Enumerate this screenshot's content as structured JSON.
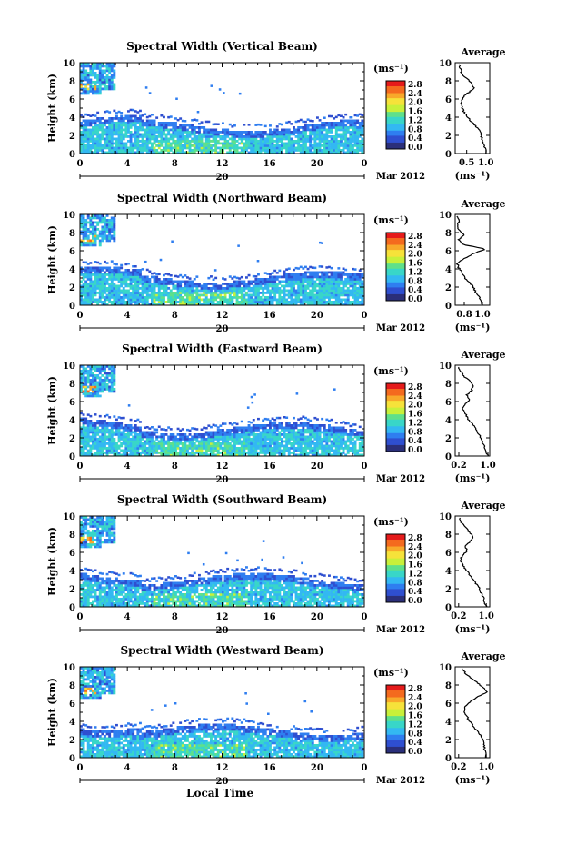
{
  "colors": [
    "#2b2f7a",
    "#2f4fd0",
    "#2f7ef0",
    "#33b8f2",
    "#39d6c8",
    "#5fe08a",
    "#c8f03a",
    "#f6e23a",
    "#f8a92a",
    "#f46a1e",
    "#e51b1b"
  ],
  "panels": [
    {
      "title": "Spectral Width (Vertical Beam)",
      "avg_ticks": [
        "0.5",
        "1.0"
      ],
      "avg_xlim": [
        0.2,
        1.1
      ],
      "profile": [
        1.0,
        0.98,
        0.95,
        0.9,
        0.88,
        0.82,
        0.72,
        0.6,
        0.5,
        0.42,
        0.38,
        0.36,
        0.4,
        0.55,
        0.7,
        0.62,
        0.5,
        0.38,
        0.33,
        0.3
      ]
    },
    {
      "title": "Spectral Width (Northward Beam)",
      "avg_ticks": [
        "0.8",
        "1.0"
      ],
      "avg_xlim": [
        0.7,
        1.08
      ],
      "profile": [
        1.0,
        0.98,
        0.96,
        0.92,
        0.9,
        0.85,
        0.8,
        0.78,
        0.74,
        0.72,
        0.8,
        0.9,
        1.04,
        0.78,
        0.74,
        0.8,
        0.75,
        0.72,
        0.74,
        0.72
      ]
    },
    {
      "title": "Spectral Width (Eastward Beam)",
      "avg_ticks": [
        "0.2",
        "1.0"
      ],
      "avg_xlim": [
        0.1,
        1.05
      ],
      "profile": [
        1.0,
        0.95,
        0.9,
        0.85,
        0.8,
        0.72,
        0.65,
        0.55,
        0.45,
        0.38,
        0.3,
        0.35,
        0.5,
        0.42,
        0.55,
        0.6,
        0.5,
        0.35,
        0.25,
        0.2
      ]
    },
    {
      "title": "Spectral Width (Southward Beam)",
      "avg_ticks": [
        "0.2",
        "1.0"
      ],
      "avg_xlim": [
        0.1,
        1.1
      ],
      "profile": [
        1.0,
        0.95,
        0.92,
        0.85,
        0.8,
        0.7,
        0.6,
        0.5,
        0.4,
        0.32,
        0.25,
        0.3,
        0.45,
        0.4,
        0.55,
        0.62,
        0.5,
        0.4,
        0.28,
        0.22
      ]
    },
    {
      "title": "Spectral Width (Westward Beam)",
      "avg_ticks": [
        "0.2",
        "1.0"
      ],
      "avg_xlim": [
        0.1,
        1.1
      ],
      "profile": [
        1.0,
        0.98,
        0.95,
        0.93,
        0.88,
        0.82,
        0.7,
        0.6,
        0.5,
        0.42,
        0.35,
        0.38,
        0.55,
        0.75,
        1.05,
        0.9,
        0.75,
        0.55,
        0.4,
        0.3
      ]
    }
  ],
  "labels": {
    "height": "Height (km)",
    "unit": "(ms⁻¹)",
    "avg_title": "Average",
    "avg_xlabel": "(ms⁻¹)",
    "date": "Mar 2012",
    "day": "20",
    "local_time": "Local Time"
  },
  "chart_data": {
    "type": "heatmap",
    "x_ticks": [
      "0",
      "4",
      "8",
      "12",
      "16",
      "20",
      "0"
    ],
    "y_ticks": [
      "0",
      "2",
      "4",
      "6",
      "8",
      "10"
    ],
    "xlim": [
      0,
      24
    ],
    "ylim": [
      0,
      10
    ],
    "colorbar_ticks": [
      "0.0",
      "0.4",
      "0.8",
      "1.2",
      "1.6",
      "2.0",
      "2.4",
      "2.8"
    ],
    "colorbar_range": [
      0.0,
      3.0
    ],
    "series": [
      {
        "name": "Spectral Width (Vertical Beam)"
      },
      {
        "name": "Spectral Width (Northward Beam)"
      },
      {
        "name": "Spectral Width (Eastward Beam)"
      },
      {
        "name": "Spectral Width (Southward Beam)"
      },
      {
        "name": "Spectral Width (Westward Beam)"
      }
    ]
  }
}
